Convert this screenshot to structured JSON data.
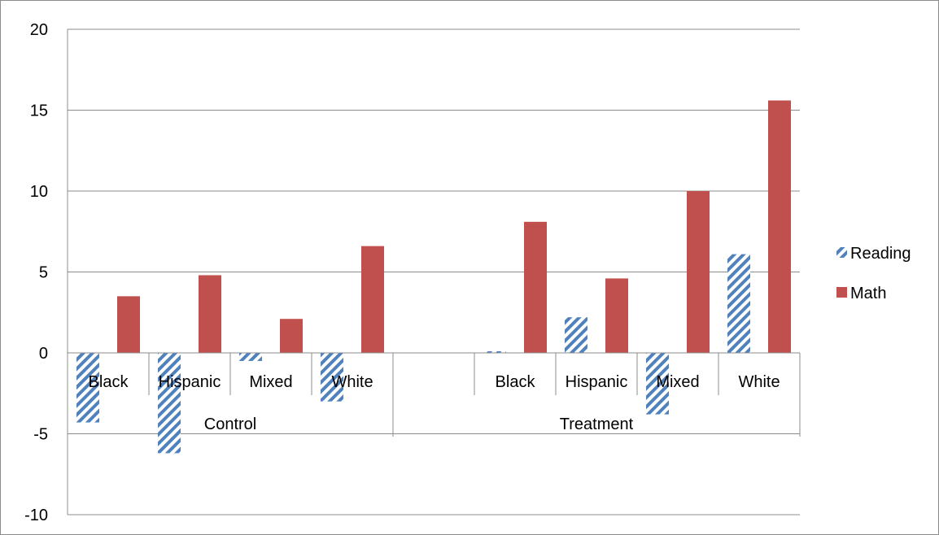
{
  "chart_data": {
    "type": "bar",
    "title": "",
    "xlabel": "",
    "ylabel": "",
    "ylim": [
      -10,
      20
    ],
    "yticks": [
      20,
      15,
      10,
      5,
      0,
      -5,
      -10
    ],
    "grid": true,
    "legend_position": "right",
    "groups": [
      {
        "label": "Control",
        "categories": [
          "Black",
          "Hispanic",
          "Mixed",
          "White"
        ]
      },
      {
        "label": "",
        "categories": [
          ""
        ]
      },
      {
        "label": "Treatment",
        "categories": [
          "Black",
          "Hispanic",
          "Mixed",
          "White"
        ]
      }
    ],
    "series": [
      {
        "name": "Reading",
        "pattern": "diagonal-hatch",
        "color": "#4f81bd",
        "values": [
          -4.3,
          -6.2,
          -0.5,
          -3.0,
          null,
          0.1,
          2.2,
          -3.8,
          6.1
        ]
      },
      {
        "name": "Math",
        "pattern": "solid",
        "color": "#c0504d",
        "values": [
          3.5,
          4.8,
          2.1,
          6.6,
          null,
          8.1,
          4.6,
          10.0,
          15.6
        ]
      }
    ]
  }
}
